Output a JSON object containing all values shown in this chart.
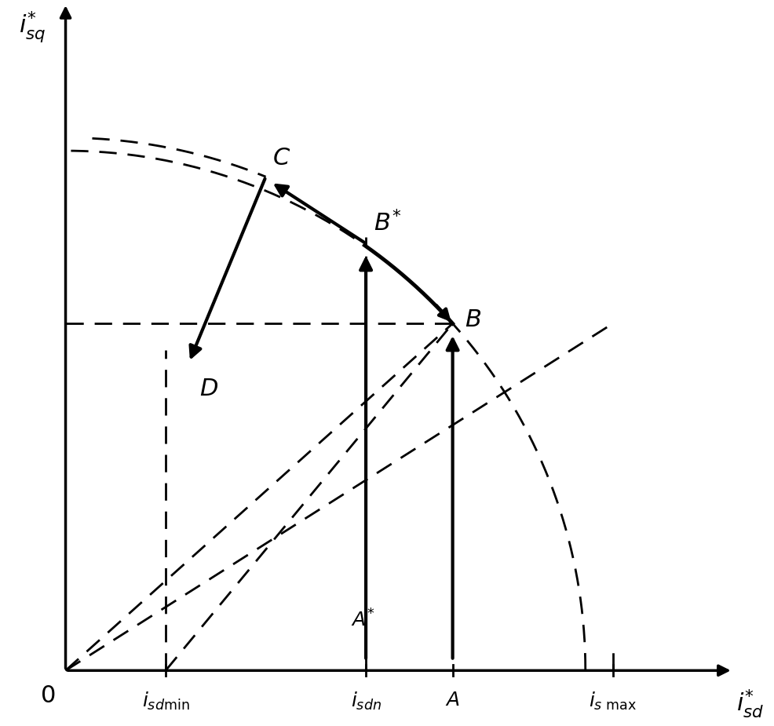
{
  "bg_color": "#ffffff",
  "xlim": [
    0,
    10
  ],
  "ylim": [
    0,
    10
  ],
  "i_sdmin": 1.5,
  "i_sdn": 4.5,
  "i_A": 5.8,
  "i_smax": 8.2,
  "point_B": [
    5.8,
    5.2
  ],
  "point_Bstar": [
    4.5,
    6.4
  ],
  "point_C": [
    3.0,
    7.4
  ],
  "point_D": [
    1.85,
    4.5
  ],
  "axis_label_fontsize": 22,
  "point_label_fontsize": 22,
  "tick_fontsize": 18,
  "arrow_lw": 3.0,
  "curve_lw": 3.0,
  "dashed_lw": 2.0,
  "axis_lw": 2.5
}
